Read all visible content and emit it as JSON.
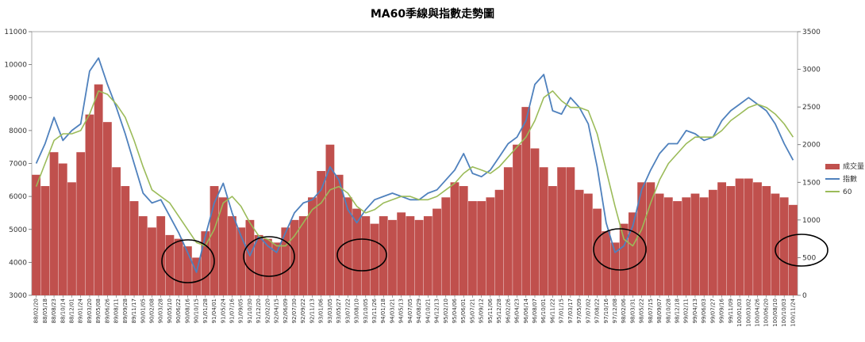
{
  "chart_data": {
    "type": "bar+line",
    "title": "MA60季線與指數走勢圖",
    "left_axis": {
      "min": 3000,
      "max": 11000,
      "ticks": [
        3000,
        4000,
        5000,
        6000,
        7000,
        8000,
        9000,
        10000,
        11000
      ]
    },
    "right_axis": {
      "min": 0,
      "max": 3500,
      "ticks": [
        0,
        500,
        1000,
        1500,
        2000,
        2500,
        3000,
        3500
      ]
    },
    "x_tick_labels": [
      "88/02/20",
      "88/05/18",
      "88/08/23",
      "88/10/14",
      "88/12/01",
      "89/01/24",
      "89/03/20",
      "89/05/08",
      "89/06/26",
      "89/08/11",
      "89/09/28",
      "89/11/17",
      "90/01/05",
      "90/02/08",
      "90/03/28",
      "90/05/10",
      "90/06/22",
      "90/08/16",
      "90/10/15",
      "91/01/28",
      "91/04/01",
      "91/05/24",
      "91/07/16",
      "91/09/05",
      "91/10/30",
      "91/12/20",
      "92/02/20",
      "92/04/15",
      "92/06/09",
      "92/07/30",
      "92/09/22",
      "92/11/13",
      "93/01/06",
      "93/03/05",
      "93/05/27",
      "93/07/22",
      "93/08/10",
      "93/10/05",
      "93/11/26",
      "94/01/18",
      "94/03/21",
      "94/05/13",
      "94/07/05",
      "94/08/29",
      "94/10/21",
      "94/12/13",
      "95/02/10",
      "95/04/06",
      "95/06/01",
      "95/07/21",
      "95/09/12",
      "95/11/06",
      "95/12/28",
      "96/02/26",
      "96/04/23",
      "96/06/14",
      "96/08/07",
      "96/10/01",
      "96/11/22",
      "97/01/15",
      "97/03/17",
      "97/05/09",
      "97/07/02",
      "97/08/22",
      "97/10/16",
      "97/12/08",
      "98/02/06",
      "98/03/31",
      "98/05/22",
      "98/07/15",
      "98/09/07",
      "98/10/28",
      "98/12/18",
      "99/02/11",
      "99/04/13",
      "99/06/03",
      "99/07/27",
      "99/09/16",
      "99/11/09",
      "100/01/03",
      "100/03/02",
      "100/04/26",
      "100/06/20",
      "100/08/10",
      "100/10/03",
      "100/11/24"
    ],
    "series": [
      {
        "name": "成交量",
        "color": "#c0504d",
        "axis": "right",
        "values": [
          1600,
          1450,
          1900,
          1750,
          1500,
          1900,
          2400,
          2800,
          2300,
          1700,
          1450,
          1250,
          1050,
          900,
          1050,
          800,
          750,
          650,
          500,
          850,
          1450,
          1300,
          1050,
          900,
          1000,
          800,
          750,
          700,
          900,
          1000,
          1050,
          1300,
          1650,
          2000,
          1600,
          1300,
          1150,
          1050,
          950,
          1050,
          1000,
          1100,
          1050,
          1000,
          1050,
          1150,
          1300,
          1500,
          1450,
          1250,
          1250,
          1300,
          1400,
          1700,
          2000,
          2500,
          1950,
          1700,
          1450,
          1700,
          1700,
          1400,
          1350,
          1150,
          850,
          700,
          950,
          1100,
          1500,
          1500,
          1350,
          1300,
          1250,
          1300,
          1350,
          1300,
          1400,
          1500,
          1450,
          1550,
          1550,
          1500,
          1450,
          1350,
          1300,
          1200
        ]
      },
      {
        "name": "指數",
        "color": "#4f81bd",
        "axis": "left",
        "values": [
          7000,
          7600,
          8400,
          7700,
          8000,
          8200,
          9800,
          10200,
          9400,
          8700,
          7900,
          7000,
          6100,
          5800,
          5900,
          5400,
          4900,
          4300,
          3700,
          4800,
          5800,
          6400,
          5500,
          4800,
          4200,
          4800,
          4500,
          4300,
          4900,
          5500,
          5800,
          5900,
          6200,
          6900,
          6500,
          5600,
          5200,
          5600,
          5900,
          6000,
          6100,
          6000,
          5900,
          5900,
          6100,
          6200,
          6500,
          6800,
          7300,
          6700,
          6600,
          6800,
          7200,
          7600,
          7800,
          8300,
          9400,
          9700,
          8600,
          8500,
          9000,
          8700,
          8200,
          6900,
          5200,
          4300,
          4500,
          5100,
          6200,
          6800,
          7300,
          7600,
          7600,
          8000,
          7900,
          7700,
          7800,
          8300,
          8600,
          8800,
          9000,
          8800,
          8600,
          8200,
          7600,
          7100
        ]
      },
      {
        "name": "60",
        "color": "#9bbb59",
        "axis": "left",
        "values": [
          6300,
          7000,
          7700,
          7900,
          7900,
          8000,
          8500,
          9200,
          9100,
          8800,
          8400,
          7700,
          6900,
          6200,
          6000,
          5800,
          5400,
          5000,
          4600,
          4500,
          5000,
          5800,
          6000,
          5700,
          5200,
          4800,
          4700,
          4500,
          4500,
          4800,
          5200,
          5600,
          5800,
          6200,
          6300,
          6100,
          5700,
          5500,
          5600,
          5800,
          5900,
          6000,
          6000,
          5900,
          5900,
          6000,
          6200,
          6400,
          6700,
          6900,
          6800,
          6700,
          6900,
          7200,
          7500,
          7800,
          8300,
          9000,
          9200,
          8900,
          8700,
          8700,
          8600,
          7900,
          6800,
          5700,
          4700,
          4500,
          5000,
          5800,
          6500,
          7000,
          7300,
          7600,
          7800,
          7800,
          7800,
          8000,
          8300,
          8500,
          8700,
          8800,
          8700,
          8500,
          8200,
          7800
        ]
      }
    ],
    "legend_position": "right"
  }
}
